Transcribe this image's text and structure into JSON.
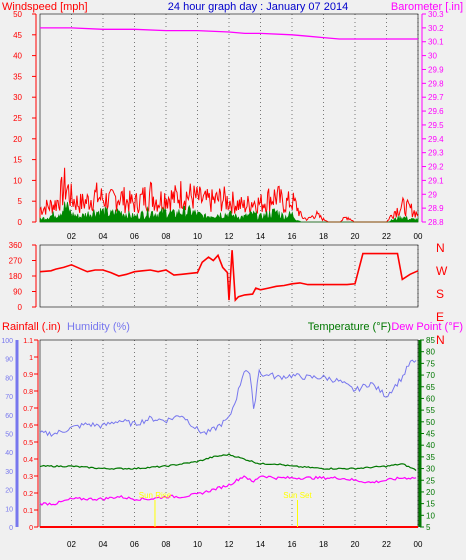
{
  "header": {
    "left_label": "Windspeed [mph]",
    "title": "24 hour graph day : January 07 2014",
    "right_label": "Barometer [.in]"
  },
  "bottom_header": {
    "rain_label": "Rainfall (.in)",
    "humidity_label": "Humidity (%)",
    "temp_label": "Temperature (°F)",
    "dew_label": "Dew Point (°F)"
  },
  "colors": {
    "wind": "#ff0000",
    "gust_fill": "#008800",
    "barometer": "#ff00ff",
    "direction": "#ff0000",
    "rain": "#ff0000",
    "humidity": "#7777ee",
    "temperature": "#007700",
    "dewpoint": "#ff00ff",
    "sun_marker": "#ffff00",
    "title": "#0000cc"
  },
  "x_ticks": [
    "02",
    "04",
    "06",
    "08",
    "10",
    "12",
    "14",
    "16",
    "18",
    "20",
    "22",
    "00"
  ],
  "markers": {
    "sunrise_label": "Sun Rise",
    "sunset_label": "Sun Set",
    "sunrise_hour": 7.3,
    "sunset_hour": 16.35
  },
  "chart_data": [
    {
      "type": "line",
      "name_text": "wind-barometer",
      "x_range_hours": [
        0,
        24
      ],
      "left_axis": {
        "ylim": [
          0,
          50
        ],
        "ticks": [
          0,
          5,
          10,
          15,
          20,
          25,
          30,
          35,
          40,
          45,
          50
        ]
      },
      "right_axis": {
        "ylim": [
          28.8,
          30.3
        ],
        "ticks": [
          "30.3",
          "30.2",
          "30.1",
          "30",
          "29.9",
          "29.8",
          "29.7",
          "29.6",
          "29.5",
          "29.4",
          "29.3",
          "29.2",
          "29.1",
          "29",
          "28.9",
          "28.8"
        ]
      },
      "barometer": {
        "x": [
          0,
          2,
          4,
          6,
          8,
          10,
          12,
          13,
          14,
          16,
          17,
          18,
          19,
          20,
          22,
          24
        ],
        "y": [
          30.2,
          30.2,
          30.19,
          30.19,
          30.18,
          30.18,
          30.17,
          30.16,
          30.16,
          30.15,
          30.14,
          30.13,
          30.12,
          30.12,
          30.12,
          30.12
        ]
      },
      "wind_envelope": {
        "x": [
          0,
          0.5,
          1,
          1.3,
          1.6,
          1.8,
          2,
          2.5,
          3,
          3.5,
          4,
          4.5,
          5,
          5.5,
          6,
          6.5,
          7,
          7.5,
          8,
          8.5,
          9,
          9.5,
          10,
          10.5,
          11,
          11.5,
          12,
          12.5,
          13,
          13.5,
          14,
          14.5,
          15,
          15.5,
          16,
          16.3,
          16.6,
          17,
          17.5,
          18,
          18.5,
          19,
          19.5,
          20,
          20.5,
          21,
          21.5,
          22,
          22.5,
          23,
          23.5,
          24
        ],
        "y": [
          5,
          6,
          7,
          10,
          14,
          12,
          9,
          7,
          8,
          10,
          9,
          8,
          10,
          8,
          7,
          9,
          11,
          8,
          10,
          9,
          11,
          10,
          9,
          8,
          8,
          9,
          8,
          7,
          6,
          8,
          7,
          9,
          10,
          7,
          8,
          6,
          2,
          1,
          3,
          1,
          0,
          0,
          2,
          0,
          0,
          0,
          0,
          0,
          4,
          6,
          5,
          3
        ]
      },
      "gust_envelope": {
        "x": [
          0,
          0.5,
          1,
          1.3,
          1.6,
          1.8,
          2,
          2.5,
          3,
          3.5,
          4,
          4.5,
          5,
          5.5,
          6,
          6.5,
          7,
          7.5,
          8,
          8.5,
          9,
          9.5,
          10,
          10.5,
          11,
          11.5,
          12,
          12.5,
          13,
          13.5,
          14,
          14.5,
          15,
          15.5,
          16,
          16.3,
          16.6,
          17,
          17.5,
          18,
          18.5,
          19,
          19.5,
          20,
          20.5,
          21,
          21.5,
          22,
          22.5,
          23,
          23.5,
          24
        ],
        "y": [
          1,
          2,
          3,
          4,
          6,
          5,
          3,
          2,
          3,
          4,
          4,
          3,
          4,
          3,
          2,
          3,
          4,
          3,
          4,
          3,
          4,
          4,
          3,
          2,
          3,
          3,
          3,
          2,
          2,
          3,
          2,
          3,
          4,
          2,
          3,
          1,
          0,
          0,
          0,
          0,
          0,
          0,
          0,
          0,
          0,
          0,
          0,
          0,
          1,
          2,
          1,
          1
        ]
      }
    },
    {
      "type": "line",
      "name_text": "wind-direction",
      "x_range_hours": [
        0,
        24
      ],
      "ylim": [
        0,
        360
      ],
      "left_ticks": [
        0,
        90,
        180,
        270,
        360
      ],
      "right_ticks": [
        "N",
        "W",
        "S",
        "E",
        "N"
      ],
      "direction": {
        "x": [
          0,
          0.7,
          1,
          1.5,
          2,
          2.5,
          3,
          3.5,
          4,
          4.5,
          5,
          5.5,
          6,
          6.5,
          7,
          7.5,
          8,
          8.5,
          9,
          9.5,
          10,
          10.3,
          10.7,
          11,
          11.3,
          11.6,
          11.9,
          12,
          12.2,
          12.4,
          12.6,
          13,
          13.5,
          13.7,
          14,
          14.5,
          15,
          15.5,
          16,
          16.5,
          17,
          17.5,
          18,
          18.5,
          19,
          19.5,
          20,
          20.5,
          21,
          22,
          22.7,
          23,
          23.5,
          24
        ],
        "y": [
          205,
          210,
          220,
          230,
          245,
          225,
          205,
          215,
          215,
          200,
          180,
          190,
          205,
          210,
          215,
          205,
          215,
          185,
          190,
          195,
          200,
          260,
          290,
          270,
          300,
          230,
          200,
          40,
          330,
          40,
          60,
          70,
          75,
          110,
          100,
          110,
          120,
          125,
          135,
          140,
          130,
          130,
          130,
          130,
          130,
          130,
          135,
          310,
          310,
          310,
          310,
          160,
          190,
          210
        ]
      }
    },
    {
      "type": "line",
      "name_text": "rain-humidity-temp",
      "x_range_hours": [
        0,
        24
      ],
      "rain_axis": {
        "ylim": [
          0,
          1.1
        ],
        "ticks": [
          "1.1",
          "1",
          "0.9",
          "0.8",
          "0.7",
          "0.6",
          "0.5",
          "0.4",
          "0.3",
          "0.2",
          "0.1",
          "0"
        ]
      },
      "humidity_axis": {
        "ylim": [
          0,
          100
        ],
        "ticks": [
          0,
          10,
          20,
          30,
          40,
          50,
          60,
          70,
          80,
          90,
          100
        ]
      },
      "temp_axis": {
        "ylim": [
          5,
          85
        ],
        "ticks": [
          5,
          10,
          15,
          20,
          25,
          30,
          35,
          40,
          45,
          50,
          55,
          60,
          65,
          70,
          75,
          80,
          85
        ]
      },
      "rainfall": {
        "x": [
          0,
          24
        ],
        "y": [
          0,
          0
        ]
      },
      "humidity": {
        "x": [
          0,
          1,
          2,
          3,
          4,
          5,
          6,
          7,
          8,
          9,
          10,
          10.5,
          11,
          11.5,
          12,
          12.5,
          13,
          13.3,
          13.6,
          13.9,
          14.2,
          14.5,
          15,
          16,
          17,
          18,
          19,
          20,
          21,
          22,
          22.5,
          23,
          23.5,
          24
        ],
        "y": [
          50,
          50,
          53,
          55,
          54,
          57,
          55,
          58,
          57,
          60,
          52,
          50,
          52,
          55,
          58,
          70,
          85,
          82,
          62,
          85,
          80,
          82,
          80,
          81,
          80,
          80,
          78,
          73,
          77,
          70,
          75,
          80,
          88,
          88
        ]
      },
      "temperature": {
        "x": [
          0,
          2,
          4,
          6,
          8,
          10,
          11,
          12,
          13,
          13.5,
          14,
          15,
          16,
          18,
          20,
          22,
          23,
          24
        ],
        "y": [
          31,
          31,
          30,
          30,
          31,
          33,
          35,
          36,
          34,
          33,
          32,
          32,
          31,
          30,
          30,
          31,
          32,
          29
        ]
      },
      "dewpoint": {
        "x": [
          0,
          1,
          2,
          3,
          4,
          5,
          6,
          7,
          8,
          9,
          10,
          11,
          12,
          13,
          13.5,
          14,
          15,
          16,
          17,
          18,
          19,
          20,
          21,
          22,
          23,
          24
        ],
        "y": [
          15,
          15,
          17,
          17,
          17,
          18,
          17,
          17,
          18,
          18,
          19,
          21,
          23,
          27,
          24,
          27,
          26,
          26,
          26,
          26,
          26,
          25,
          24,
          25,
          26,
          26
        ]
      }
    }
  ]
}
